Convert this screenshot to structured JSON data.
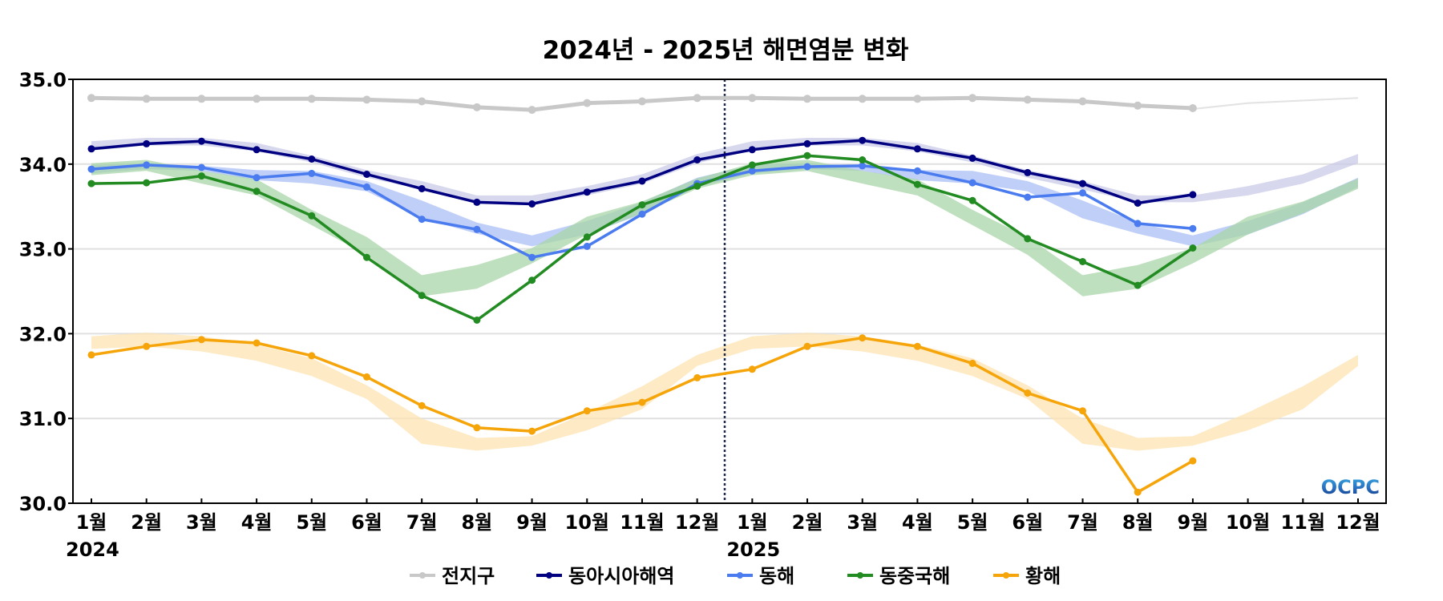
{
  "chart_data": {
    "type": "line",
    "title": "2024년 - 2025년 해면염분 변화",
    "xlabel": "",
    "ylabel": "",
    "ylim": [
      30.0,
      35.0
    ],
    "yticks": [
      "30.0",
      "31.0",
      "32.0",
      "33.0",
      "34.0",
      "35.0"
    ],
    "grid": true,
    "categories": [
      "1월",
      "2월",
      "3월",
      "4월",
      "5월",
      "6월",
      "7월",
      "8월",
      "9월",
      "10월",
      "11월",
      "12월",
      "1월",
      "2월",
      "3월",
      "4월",
      "5월",
      "6월",
      "7월",
      "8월",
      "9월",
      "10월",
      "11월",
      "12월"
    ],
    "year_labels": [
      {
        "label": "2024",
        "at_index": 0
      },
      {
        "label": "2025",
        "at_index": 12
      }
    ],
    "year_divider": "between 2024-12 and 2025-01 (dotted vertical line)",
    "legend_position": "bottom-center",
    "watermark": "OCPC",
    "series": [
      {
        "name": "전지구",
        "color": "#c8c8c8",
        "band_color": "#d9d9d9",
        "values": [
          34.78,
          34.77,
          34.77,
          34.77,
          34.77,
          34.76,
          34.74,
          34.67,
          34.64,
          34.72,
          34.74,
          34.78,
          34.78,
          34.77,
          34.77,
          34.77,
          34.78,
          34.76,
          34.74,
          34.69,
          34.66,
          null,
          null,
          null
        ],
        "band_upper": [
          34.79,
          34.79,
          34.79,
          34.78,
          34.78,
          34.77,
          34.75,
          34.69,
          34.66,
          34.73,
          34.76,
          34.79,
          34.79,
          34.79,
          34.79,
          34.78,
          34.78,
          34.77,
          34.75,
          34.69,
          34.66,
          34.73,
          34.76,
          34.79
        ],
        "band_lower": [
          34.77,
          34.77,
          34.77,
          34.76,
          34.76,
          34.75,
          34.73,
          34.67,
          34.64,
          34.71,
          34.74,
          34.77,
          34.77,
          34.77,
          34.77,
          34.76,
          34.76,
          34.75,
          34.73,
          34.67,
          34.64,
          34.71,
          34.74,
          34.77
        ]
      },
      {
        "name": "동아시아해역",
        "color": "#000080",
        "band_color": "#c9cbe8",
        "values": [
          34.18,
          34.24,
          34.27,
          34.17,
          34.06,
          33.88,
          33.71,
          33.55,
          33.53,
          33.67,
          33.8,
          34.05,
          34.17,
          34.24,
          34.28,
          34.18,
          34.07,
          33.9,
          33.77,
          33.54,
          33.64,
          null,
          null,
          null
        ],
        "band_upper": [
          34.27,
          34.31,
          34.31,
          34.25,
          34.1,
          33.93,
          33.8,
          33.63,
          33.63,
          33.74,
          33.88,
          34.12,
          34.27,
          34.31,
          34.31,
          34.25,
          34.1,
          33.93,
          33.8,
          33.63,
          33.63,
          33.74,
          33.88,
          34.12
        ],
        "band_lower": [
          34.16,
          34.22,
          34.22,
          34.15,
          34.02,
          33.84,
          33.7,
          33.55,
          33.55,
          33.63,
          33.77,
          34.01,
          34.16,
          34.22,
          34.22,
          34.15,
          34.02,
          33.84,
          33.7,
          33.55,
          33.55,
          33.63,
          33.77,
          34.01
        ]
      },
      {
        "name": "동해",
        "color": "#4a7bef",
        "band_color": "#a9bff5",
        "values": [
          33.94,
          33.99,
          33.96,
          33.84,
          33.89,
          33.73,
          33.35,
          33.23,
          32.9,
          33.03,
          33.41,
          33.77,
          33.92,
          33.97,
          33.98,
          33.92,
          33.78,
          33.61,
          33.66,
          33.3,
          33.24,
          null,
          null,
          null
        ],
        "band_upper": [
          33.99,
          34.01,
          33.98,
          33.93,
          33.92,
          33.8,
          33.57,
          33.31,
          33.16,
          33.33,
          33.55,
          33.84,
          33.99,
          34.01,
          33.98,
          33.93,
          33.92,
          33.8,
          33.57,
          33.31,
          33.16,
          33.33,
          33.55,
          33.84
        ],
        "band_lower": [
          33.89,
          33.94,
          33.92,
          33.81,
          33.77,
          33.68,
          33.36,
          33.18,
          33.03,
          33.17,
          33.41,
          33.73,
          33.89,
          33.94,
          33.92,
          33.81,
          33.77,
          33.68,
          33.36,
          33.18,
          33.03,
          33.17,
          33.41,
          33.73
        ]
      },
      {
        "name": "동중국해",
        "color": "#228b22",
        "band_color": "#a8d5a8",
        "values": [
          33.77,
          33.78,
          33.86,
          33.68,
          33.39,
          32.9,
          32.45,
          32.16,
          32.63,
          33.14,
          33.52,
          33.74,
          33.99,
          34.1,
          34.05,
          33.76,
          33.57,
          33.12,
          32.85,
          32.57,
          33.01,
          null,
          null,
          null
        ],
        "band_upper": [
          34.01,
          34.05,
          33.92,
          33.82,
          33.46,
          33.14,
          32.69,
          32.81,
          33.01,
          33.38,
          33.56,
          33.83,
          34.01,
          34.05,
          33.92,
          33.82,
          33.46,
          33.14,
          32.69,
          32.81,
          33.01,
          33.38,
          33.56,
          33.83
        ],
        "band_lower": [
          33.87,
          33.92,
          33.77,
          33.63,
          33.28,
          32.93,
          32.44,
          32.53,
          32.83,
          33.17,
          33.42,
          33.71,
          33.87,
          33.92,
          33.77,
          33.63,
          33.28,
          32.93,
          32.44,
          32.53,
          32.83,
          33.17,
          33.42,
          33.71
        ]
      },
      {
        "name": "황해",
        "color": "#f5a50a",
        "band_color": "#fde3b0",
        "values": [
          31.75,
          31.85,
          31.93,
          31.89,
          31.74,
          31.49,
          31.15,
          30.89,
          30.85,
          31.09,
          31.19,
          31.48,
          31.58,
          31.85,
          31.95,
          31.85,
          31.65,
          31.3,
          31.09,
          30.13,
          30.5,
          null,
          null,
          null
        ],
        "band_upper": [
          31.97,
          32.01,
          31.97,
          31.87,
          31.71,
          31.39,
          31.0,
          30.77,
          30.79,
          31.07,
          31.38,
          31.75,
          31.97,
          32.01,
          31.97,
          31.87,
          31.71,
          31.39,
          31.0,
          30.77,
          30.79,
          31.07,
          31.38,
          31.75
        ],
        "band_lower": [
          31.82,
          31.85,
          31.79,
          31.68,
          31.5,
          31.23,
          30.7,
          30.62,
          30.68,
          30.86,
          31.11,
          31.62,
          31.82,
          31.85,
          31.79,
          31.68,
          31.5,
          31.23,
          30.7,
          30.62,
          30.68,
          30.86,
          31.11,
          31.62
        ]
      }
    ]
  }
}
